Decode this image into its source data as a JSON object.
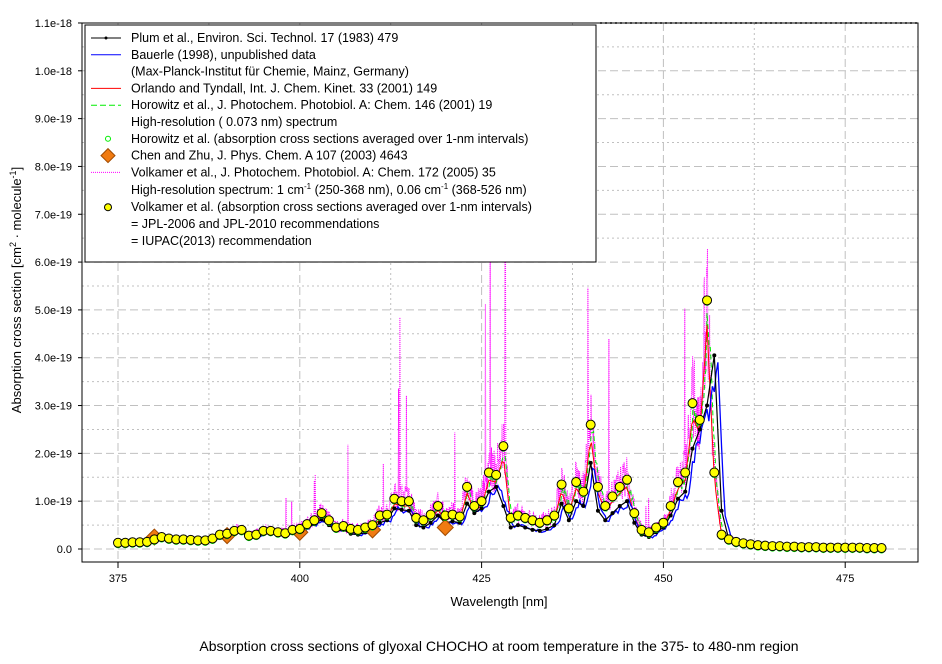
{
  "chart_data": {
    "type": "line",
    "title": "Absorption cross sections of glyoxal CHOCHO at room temperature in the 375- to 480-nm region",
    "xlabel": "Wavelength [nm]",
    "ylabel": "Absorption cross section [cm",
    "ylabel_sup1": "2",
    "ylabel_mid": " · molecule",
    "ylabel_sup2": "-1",
    "ylabel_end": "]",
    "xlim": [
      370,
      485
    ],
    "ylim": [
      -2.5e-20,
      1.1e-18
    ],
    "x_ticks": [
      375,
      400,
      425,
      450,
      475
    ],
    "x_tick_labels": [
      "375",
      "400",
      "425",
      "450",
      "475"
    ],
    "y_ticks": [
      0,
      1e-19,
      2e-19,
      3e-19,
      4e-19,
      5e-19,
      6e-19,
      7e-19,
      8e-19,
      9e-19,
      1e-18,
      1.1e-18
    ],
    "y_tick_labels": [
      "0.0",
      "1.0e-19",
      "2.0e-19",
      "3.0e-19",
      "4.0e-19",
      "5.0e-19",
      "6.0e-19",
      "7.0e-19",
      "8.0e-19",
      "9.0e-19",
      "1.0e-18",
      "1.1e-18"
    ],
    "grid": true,
    "legend_placement": "top-left",
    "legend": [
      {
        "key": "plum",
        "lines": [
          "Plum et al., Environ. Sci. Technol. 17 (1983) 479"
        ]
      },
      {
        "key": "bauerle",
        "lines": [
          "Bauerle (1998), unpublished data",
          "(Max-Planck-Institut für Chemie, Mainz, Germany)"
        ]
      },
      {
        "key": "orlando",
        "lines": [
          "Orlando and Tyndall, Int. J. Chem. Kinet. 33 (2001) 149"
        ]
      },
      {
        "key": "horowitz_hr",
        "lines": [
          "Horowitz et al., J. Photochem. Photobiol. A: Chem. 146 (2001) 19",
          "High-resolution ( 0.073 nm) spectrum"
        ]
      },
      {
        "key": "horowitz_avg",
        "lines": [
          "Horowitz et al. (absorption cross sections averaged over 1-nm intervals)"
        ]
      },
      {
        "key": "chen_zhu",
        "lines": [
          "Chen and Zhu, J. Phys. Chem. A 107 (2003) 4643"
        ]
      },
      {
        "key": "volkamer_hr",
        "lines": [
          "Volkamer et al., J. Photochem. Photobiol. A: Chem. 172 (2005) 35"
        ],
        "line2_parts": [
          "High-resolution spectrum: 1 cm",
          "-1",
          " (250-368 nm), 0.06 cm",
          "-1",
          " (368-526 nm)"
        ]
      },
      {
        "key": "volkamer_avg",
        "lines": [
          "Volkamer et al. (absorption cross sections averaged over 1-nm intervals)",
          "= JPL-2006 and JPL-2010 recommendations",
          "= IUPAC(2013) recommendation"
        ]
      }
    ],
    "colors": {
      "plum": "#000000",
      "bauerle": "#0000ff",
      "orlando": "#ff0000",
      "horowitz": "#00ee00",
      "chen_zhu": "#f07b12",
      "volkamer_hr": "#ff00ff",
      "volkamer_avg": "#ffff00"
    },
    "units_note": "y values below in 1e-19 cm2 molecule-1",
    "volkamer_avg": {
      "x_start": 375,
      "values": [
        0.13,
        0.13,
        0.14,
        0.14,
        0.15,
        0.2,
        0.25,
        0.22,
        0.2,
        0.2,
        0.19,
        0.18,
        0.18,
        0.22,
        0.3,
        0.32,
        0.38,
        0.4,
        0.28,
        0.3,
        0.38,
        0.38,
        0.35,
        0.33,
        0.4,
        0.42,
        0.52,
        0.6,
        0.75,
        0.6,
        0.45,
        0.48,
        0.42,
        0.4,
        0.45,
        0.5,
        0.7,
        0.72,
        1.05,
        1.0,
        1.0,
        0.65,
        0.6,
        0.72,
        0.9,
        0.7,
        0.72,
        0.68,
        1.3,
        0.9,
        1.0,
        1.6,
        1.55,
        2.15,
        0.65,
        0.7,
        0.65,
        0.6,
        0.55,
        0.6,
        0.7,
        1.35,
        0.85,
        1.4,
        1.2,
        2.6,
        1.3,
        0.9,
        1.1,
        1.3,
        1.45,
        0.75,
        0.4,
        0.35,
        0.45,
        0.55,
        0.9,
        1.4,
        1.6,
        3.05,
        2.7,
        5.2,
        1.6,
        0.3,
        0.2,
        0.15,
        0.12,
        0.1,
        0.08,
        0.07,
        0.06,
        0.06,
        0.05,
        0.05,
        0.04,
        0.04,
        0.04,
        0.03,
        0.03,
        0.03,
        0.03,
        0.03,
        0.03,
        0.02,
        0.02,
        0.02
      ]
    },
    "plum": {
      "x_start": 375,
      "values": [
        0.12,
        0.12,
        0.13,
        0.13,
        0.14,
        0.18,
        0.22,
        0.2,
        0.19,
        0.18,
        0.17,
        0.16,
        0.16,
        0.2,
        0.25,
        0.28,
        0.32,
        0.35,
        0.25,
        0.27,
        0.33,
        0.34,
        0.32,
        0.3,
        0.35,
        0.38,
        0.45,
        0.52,
        0.62,
        0.5,
        0.38,
        0.4,
        0.32,
        0.3,
        0.35,
        0.42,
        0.55,
        0.6,
        0.85,
        0.82,
        0.8,
        0.5,
        0.45,
        0.55,
        0.7,
        0.55,
        0.58,
        0.55,
        0.95,
        0.75,
        0.85,
        1.2,
        1.3,
        0.9,
        0.45,
        0.5,
        0.45,
        0.4,
        0.38,
        0.42,
        0.5,
        0.95,
        0.6,
        1.0,
        0.9,
        1.8,
        0.8,
        0.6,
        0.75,
        0.9,
        1.0,
        0.55,
        0.3,
        0.25,
        0.35,
        0.45,
        0.7,
        1.05,
        1.2,
        2.1,
        2.5,
        3.0,
        4.05,
        0.8,
        0.2,
        0.12,
        0.1,
        0.08,
        0.06,
        0.05,
        0.05,
        0.04,
        0.04,
        0.04,
        0.03,
        0.03,
        0.03,
        0.03,
        0.02,
        0.02,
        0.02,
        0.02,
        0.02,
        0.02,
        0.02,
        0.02
      ]
    },
    "chen_zhu": {
      "x": [
        380,
        390,
        400,
        410,
        420
      ],
      "values": [
        0.25,
        0.28,
        0.35,
        0.4,
        0.45
      ]
    }
  }
}
